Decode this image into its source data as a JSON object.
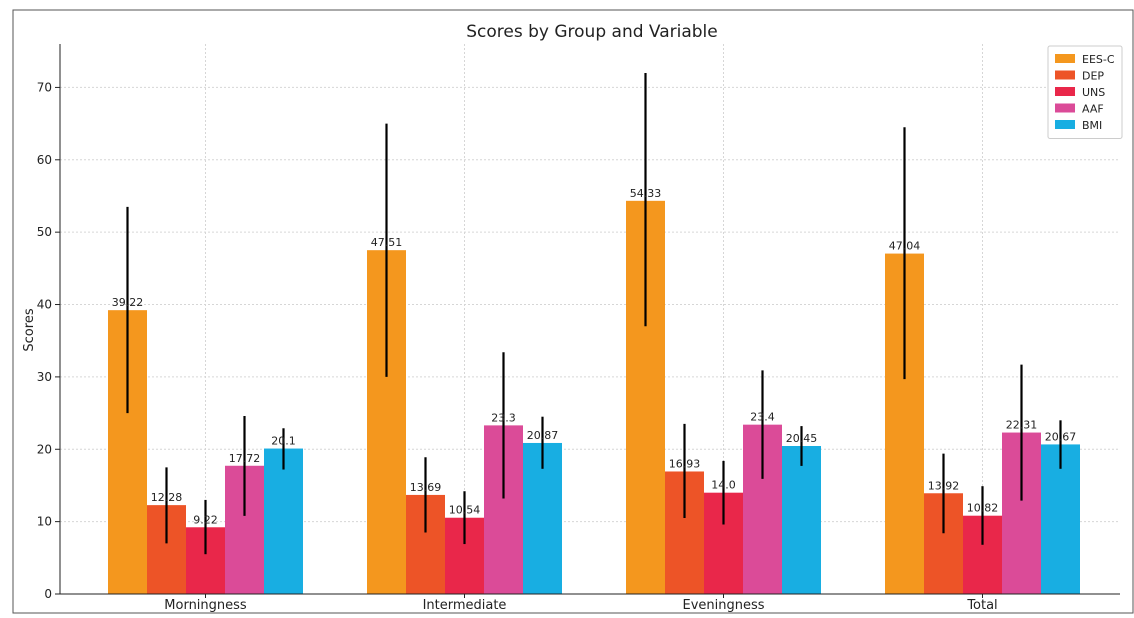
{
  "chart_data": {
    "type": "bar",
    "title": "Scores by Group and Variable",
    "ylabel": "Scores",
    "xlabel": "",
    "ylim": [
      0,
      76
    ],
    "yticks": [
      0,
      10,
      20,
      30,
      40,
      50,
      60,
      70
    ],
    "grid": true,
    "legend_position": "top-right",
    "categories": [
      "Morningness",
      "Intermediate",
      "Eveningness",
      "Total"
    ],
    "series": [
      {
        "name": "EES-C",
        "color": "#f4971e",
        "values": [
          39.22,
          47.51,
          54.33,
          47.04
        ],
        "err_low": [
          25.0,
          30.0,
          37.0,
          29.7
        ],
        "err_high": [
          53.5,
          65.0,
          72.0,
          64.5
        ],
        "labels": [
          "39.22",
          "47.51",
          "54.33",
          "47.04"
        ]
      },
      {
        "name": "DEP",
        "color": "#ed5427",
        "values": [
          12.28,
          13.69,
          16.93,
          13.92
        ],
        "err_low": [
          7.0,
          8.5,
          10.5,
          8.4
        ],
        "err_high": [
          17.5,
          18.9,
          23.5,
          19.4
        ],
        "labels": [
          "12.28",
          "13.69",
          "16.93",
          "13.92"
        ]
      },
      {
        "name": "UNS",
        "color": "#e9274a",
        "values": [
          9.22,
          10.54,
          14.0,
          10.82
        ],
        "err_low": [
          5.5,
          6.9,
          9.6,
          6.8
        ],
        "err_high": [
          13.0,
          14.2,
          18.4,
          14.9
        ],
        "labels": [
          "9.22",
          "10.54",
          "14.0",
          "10.82"
        ]
      },
      {
        "name": "AAF",
        "color": "#db4b98",
        "values": [
          17.72,
          23.3,
          23.4,
          22.31
        ],
        "err_low": [
          10.8,
          13.2,
          15.9,
          12.9
        ],
        "err_high": [
          24.6,
          33.4,
          30.9,
          31.7
        ],
        "labels": [
          "17.72",
          "23.3",
          "23.4",
          "22.31"
        ]
      },
      {
        "name": "BMI",
        "color": "#18aee2",
        "values": [
          20.1,
          20.87,
          20.45,
          20.67
        ],
        "err_low": [
          17.2,
          17.3,
          17.7,
          17.3
        ],
        "err_high": [
          22.9,
          24.5,
          23.2,
          24.0
        ],
        "labels": [
          "20.1",
          "20.87",
          "20.45",
          "20.67"
        ]
      }
    ]
  }
}
